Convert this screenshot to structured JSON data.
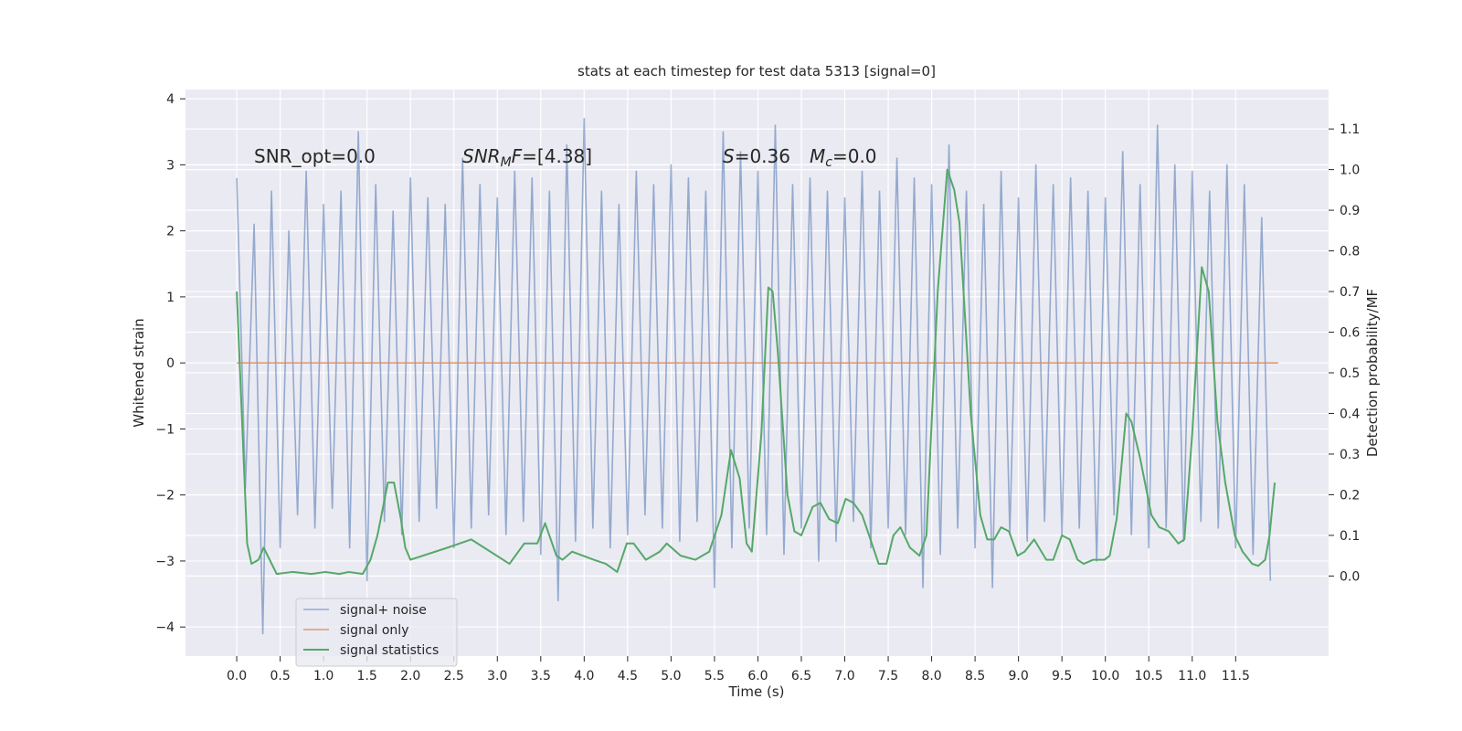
{
  "chart_data": {
    "type": "line",
    "title": "stats at each timestep for test data 5313 [signal=0]",
    "x_label": "Time (s)",
    "y_label": "Whitened strain",
    "y2_label": "Detection probability/MF",
    "annotations": [
      [
        "SNR_opt=0.0"
      ],
      [
        "SNR",
        "M",
        "F",
        "=[4.38]"
      ],
      [
        "S",
        "=0.36"
      ],
      [
        "M",
        "c",
        "=0.0"
      ]
    ],
    "xlim": [
      -0.59,
      12.57
    ],
    "ylim": [
      -4.44,
      4.14
    ],
    "y2lim": [
      -0.197,
      1.197
    ],
    "xticks": [
      {
        "value": 0,
        "label": "0.0"
      },
      0.5,
      {
        "value": 1,
        "label": "1.0"
      },
      1.5,
      {
        "value": 2,
        "label": "2.0"
      },
      2.5,
      {
        "value": 3,
        "label": "3.0"
      },
      3.5,
      {
        "value": 4,
        "label": "4.0"
      },
      4.5,
      {
        "value": 5,
        "label": "5.0"
      },
      5.5,
      {
        "value": 6,
        "label": "6.0"
      },
      6.5,
      {
        "value": 7,
        "label": "7.0"
      },
      7.5,
      {
        "value": 8,
        "label": "8.0"
      },
      8.5,
      {
        "value": 9,
        "label": "9.0"
      },
      9.5,
      {
        "value": 10,
        "label": "10.0"
      },
      10.5,
      {
        "value": 11,
        "label": "11.0"
      },
      11.5
    ],
    "yticks": [
      {
        "value": -4,
        "label": "−4"
      },
      {
        "value": -3,
        "label": "−3"
      },
      {
        "value": -2,
        "label": "−2"
      },
      {
        "value": -1,
        "label": "−1"
      },
      0,
      1,
      2,
      3,
      4
    ],
    "y2ticks": [
      {
        "value": 0,
        "label": "0.0"
      },
      0.1,
      0.2,
      0.3,
      0.4,
      0.5,
      0.6,
      0.7,
      0.8,
      0.9,
      {
        "value": 1,
        "label": "1.0"
      },
      1.1
    ],
    "grid": true,
    "legend": "lower left",
    "series": [
      {
        "name": "signal+ noise",
        "color": "#4c72b0",
        "x": [
          0,
          0.1,
          0.2,
          0.3,
          0.4,
          0.5,
          0.6,
          0.7,
          0.8,
          0.9,
          1,
          1.1,
          1.2,
          1.3,
          1.4,
          1.5,
          1.6,
          1.7,
          1.8,
          1.9,
          2,
          2.1,
          2.2,
          2.3,
          2.4,
          2.5,
          2.6,
          2.7,
          2.8,
          2.9,
          3,
          3.1,
          3.2,
          3.3,
          3.4,
          3.5,
          3.6,
          3.7,
          3.8,
          3.9,
          4,
          4.1,
          4.2,
          4.3,
          4.4,
          4.5,
          4.6,
          4.7,
          4.8,
          4.9,
          5,
          5.1,
          5.2,
          5.3,
          5.4,
          5.5,
          5.6,
          5.7,
          5.8,
          5.9,
          6,
          6.1,
          6.2,
          6.3,
          6.4,
          6.5,
          6.6,
          6.7,
          6.8,
          6.9,
          7,
          7.1,
          7.2,
          7.3,
          7.4,
          7.5,
          7.6,
          7.7,
          7.8,
          7.9,
          8,
          8.1,
          8.2,
          8.3,
          8.4,
          8.5,
          8.6,
          8.7,
          8.8,
          8.9,
          9,
          9.1,
          9.2,
          9.3,
          9.4,
          9.5,
          9.6,
          9.7,
          9.8,
          9.9,
          10,
          10.1,
          10.2,
          10.3,
          10.4,
          10.5,
          10.6,
          10.7,
          10.8,
          10.9,
          11,
          11.1,
          11.2,
          11.3,
          11.4,
          11.5,
          11.6,
          11.7,
          11.8,
          11.9
        ],
        "values": [
          2.8,
          -1.9,
          2.1,
          -4.1,
          2.6,
          -2.8,
          2.0,
          -2.3,
          2.9,
          -2.5,
          2.4,
          -2.2,
          2.6,
          -2.8,
          3.5,
          -3.3,
          2.7,
          -2.4,
          2.3,
          -2.6,
          2.8,
          -2.4,
          2.5,
          -2.2,
          2.4,
          -2.8,
          3.1,
          -2.5,
          2.7,
          -2.3,
          2.5,
          -2.6,
          2.9,
          -2.4,
          2.8,
          -2.9,
          2.6,
          -3.6,
          3.3,
          -2.7,
          3.7,
          -2.5,
          2.6,
          -2.8,
          2.4,
          -2.6,
          2.9,
          -2.3,
          2.7,
          -2.5,
          3.0,
          -2.7,
          2.8,
          -2.4,
          2.6,
          -3.4,
          3.5,
          -2.8,
          3.2,
          -2.5,
          2.9,
          -2.6,
          3.6,
          -2.9,
          2.7,
          -2.5,
          2.8,
          -3.0,
          2.6,
          -2.7,
          2.5,
          -2.4,
          2.9,
          -2.8,
          2.6,
          -2.5,
          3.1,
          -2.6,
          2.8,
          -3.4,
          2.7,
          -2.9,
          3.3,
          -2.5,
          2.6,
          -2.8,
          2.4,
          -3.4,
          2.9,
          -2.6,
          2.5,
          -2.7,
          3.0,
          -2.4,
          2.7,
          -2.6,
          2.8,
          -2.5,
          2.6,
          -3.0,
          2.5,
          -2.3,
          3.2,
          -2.6,
          2.7,
          -2.8,
          3.6,
          -2.5,
          3.0,
          -2.7,
          2.9,
          -2.4,
          2.6,
          -2.5,
          3.0,
          -2.8,
          2.7,
          -2.9,
          2.2,
          -3.3
        ]
      },
      {
        "name": "signal only",
        "color": "#dd8452",
        "x": [
          0,
          11.99
        ],
        "values": [
          0,
          0
        ]
      },
      {
        "name": "signal statistics",
        "color": "#55a868",
        "axis": "y2",
        "x": [
          0,
          0.12,
          0.17,
          0.25,
          0.31,
          0.46,
          0.64,
          0.86,
          1.02,
          1.18,
          1.29,
          1.45,
          1.54,
          1.62,
          1.74,
          1.81,
          1.89,
          1.94,
          2.0,
          2.43,
          2.7,
          3.14,
          3.31,
          3.46,
          3.55,
          3.68,
          3.75,
          3.86,
          4.11,
          4.25,
          4.38,
          4.49,
          4.57,
          4.71,
          4.87,
          4.95,
          5.11,
          5.28,
          5.44,
          5.58,
          5.69,
          5.79,
          5.87,
          5.93,
          6.04,
          6.12,
          6.17,
          6.23,
          6.34,
          6.42,
          6.5,
          6.63,
          6.72,
          6.82,
          6.92,
          7.01,
          7.1,
          7.2,
          7.28,
          7.39,
          7.48,
          7.56,
          7.64,
          7.75,
          7.86,
          7.94,
          8.07,
          8.18,
          8.26,
          8.32,
          8.45,
          8.56,
          8.64,
          8.72,
          8.8,
          8.89,
          8.99,
          9.07,
          9.18,
          9.32,
          9.4,
          9.5,
          9.59,
          9.68,
          9.75,
          9.86,
          9.99,
          10.05,
          10.13,
          10.24,
          10.3,
          10.4,
          10.53,
          10.62,
          10.73,
          10.84,
          10.91,
          11.0,
          11.11,
          11.19,
          11.29,
          11.38,
          11.49,
          11.58,
          11.69,
          11.76,
          11.84,
          11.89,
          11.95
        ],
        "values": [
          0.7,
          0.08,
          0.03,
          0.04,
          0.07,
          0.005,
          0.01,
          0.005,
          0.01,
          0.005,
          0.01,
          0.005,
          0.04,
          0.1,
          0.23,
          0.23,
          0.14,
          0.07,
          0.04,
          0.07,
          0.09,
          0.03,
          0.08,
          0.08,
          0.13,
          0.05,
          0.04,
          0.06,
          0.04,
          0.03,
          0.01,
          0.08,
          0.08,
          0.04,
          0.06,
          0.08,
          0.05,
          0.04,
          0.06,
          0.15,
          0.31,
          0.24,
          0.08,
          0.06,
          0.35,
          0.71,
          0.7,
          0.55,
          0.2,
          0.11,
          0.1,
          0.17,
          0.18,
          0.14,
          0.13,
          0.19,
          0.18,
          0.15,
          0.1,
          0.03,
          0.03,
          0.1,
          0.12,
          0.07,
          0.05,
          0.1,
          0.7,
          1.0,
          0.95,
          0.87,
          0.4,
          0.15,
          0.09,
          0.09,
          0.12,
          0.11,
          0.05,
          0.06,
          0.09,
          0.04,
          0.04,
          0.1,
          0.09,
          0.04,
          0.03,
          0.04,
          0.04,
          0.05,
          0.14,
          0.4,
          0.38,
          0.29,
          0.15,
          0.12,
          0.11,
          0.08,
          0.09,
          0.35,
          0.76,
          0.7,
          0.38,
          0.23,
          0.1,
          0.06,
          0.03,
          0.025,
          0.04,
          0.1,
          0.23
        ]
      }
    ]
  }
}
